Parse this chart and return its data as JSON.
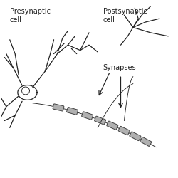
{
  "bg_color": "#ffffff",
  "line_color": "#222222",
  "myelin_color": "#b0b0b0",
  "myelin_edge_color": "#444444",
  "label_presynaptic": "Presynaptic\ncell",
  "label_postsynaptic": "Postsynaptic\ncell",
  "label_synapses": "Synapses",
  "font_size": 7,
  "line_width": 0.9
}
